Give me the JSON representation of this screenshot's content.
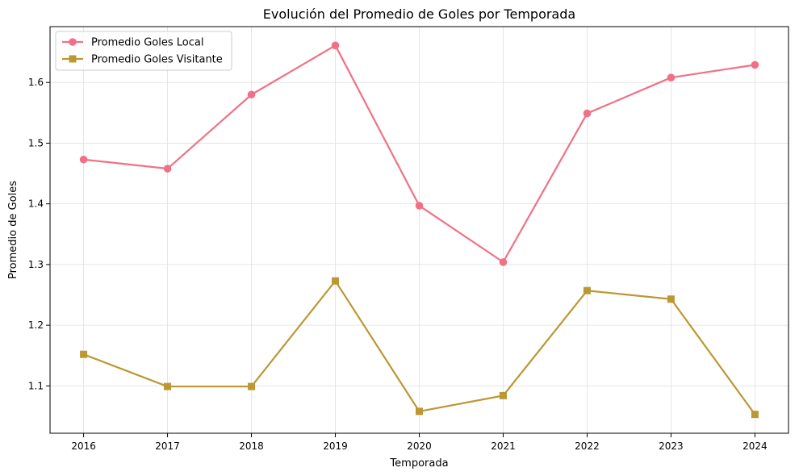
{
  "chart_data": {
    "type": "line",
    "title": "Evolución del Promedio de Goles por Temporada",
    "xlabel": "Temporada",
    "ylabel": "Promedio de Goles",
    "x": [
      2016,
      2017,
      2018,
      2019,
      2020,
      2021,
      2022,
      2023,
      2024
    ],
    "x_tick_labels": [
      "2016",
      "2017",
      "2018",
      "2019",
      "2020",
      "2021",
      "2022",
      "2023",
      "2024"
    ],
    "y_ticks": [
      1.1,
      1.2,
      1.3,
      1.4,
      1.5,
      1.6
    ],
    "y_tick_labels": [
      "1.1",
      "1.2",
      "1.3",
      "1.4",
      "1.5",
      "1.6"
    ],
    "xlim": [
      2015.6,
      2024.4
    ],
    "ylim": [
      1.022,
      1.692
    ],
    "grid": true,
    "legend_position": "top-left",
    "series": [
      {
        "name": "Promedio Goles Local",
        "color": "#f07187",
        "marker": "circle",
        "values": [
          1.473,
          1.458,
          1.58,
          1.661,
          1.397,
          1.304,
          1.549,
          1.608,
          1.629
        ]
      },
      {
        "name": "Promedio Goles Visitante",
        "color": "#bb9834",
        "marker": "square",
        "values": [
          1.152,
          1.099,
          1.099,
          1.273,
          1.058,
          1.084,
          1.257,
          1.243,
          1.053
        ]
      }
    ]
  }
}
